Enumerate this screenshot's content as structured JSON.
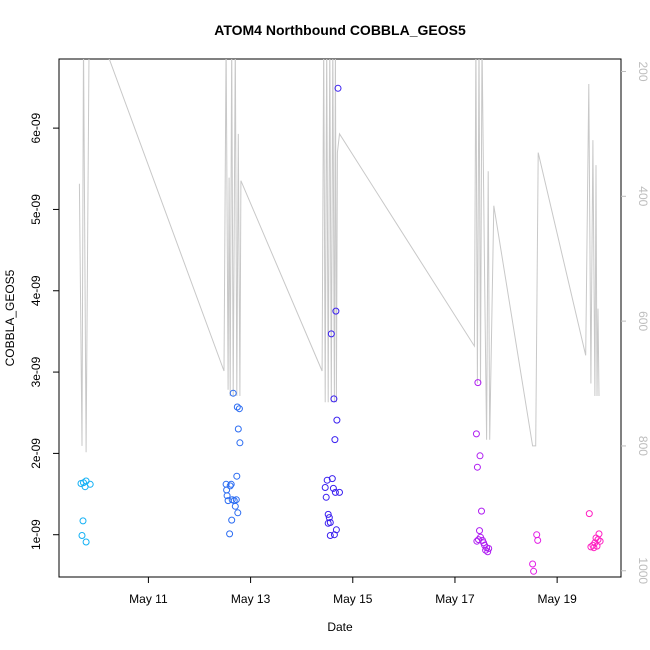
{
  "chart_data": {
    "type": "scatter",
    "title": "ATOM4 Northbound COBBLA_GEOS5",
    "xlabel": "Date",
    "ylabel": "COBBLA_GEOS5",
    "x_unit": "day of May",
    "xlim": [
      9.25,
      20.25
    ],
    "ylim": [
      4.8e-10,
      6.85e-09
    ],
    "x_ticks": [
      {
        "value": 11,
        "label": "May 11"
      },
      {
        "value": 13,
        "label": "May 13"
      },
      {
        "value": 15,
        "label": "May 15"
      },
      {
        "value": 17,
        "label": "May 17"
      },
      {
        "value": 19,
        "label": "May 19"
      }
    ],
    "y_ticks": [
      {
        "value": 1e-09,
        "label": "1e-09"
      },
      {
        "value": 2e-09,
        "label": "2e-09"
      },
      {
        "value": 3e-09,
        "label": "3e-09"
      },
      {
        "value": 4e-09,
        "label": "4e-09"
      },
      {
        "value": 5e-09,
        "label": "5e-09"
      },
      {
        "value": 6e-09,
        "label": "6e-09"
      }
    ],
    "secondary_axis": {
      "side": "right",
      "reversed": true,
      "ylim": [
        180,
        1010
      ],
      "ticks": [
        {
          "value": 200,
          "label": "200"
        },
        {
          "value": 400,
          "label": "400"
        },
        {
          "value": 600,
          "label": "600"
        },
        {
          "value": 800,
          "label": "800"
        },
        {
          "value": 1000,
          "label": "1000"
        }
      ],
      "color": "#bdbdbd"
    },
    "grid": false,
    "colors": {
      "line": "#c8c8c8",
      "points_early": "#00bfff",
      "points_mid": "#1f3fff",
      "points_late": "#ff00ff",
      "axis": "#000000"
    },
    "scatter_points": [
      {
        "x": 9.68,
        "y": 1.63e-09,
        "color": "#11b0f5"
      },
      {
        "x": 9.73,
        "y": 1.64e-09,
        "color": "#11b0f5"
      },
      {
        "x": 9.76,
        "y": 1.59e-09,
        "color": "#11b0f5"
      },
      {
        "x": 9.78,
        "y": 1.66e-09,
        "color": "#11b0f5"
      },
      {
        "x": 9.86,
        "y": 1.62e-09,
        "color": "#11b0f5"
      },
      {
        "x": 9.72,
        "y": 1.17e-09,
        "color": "#11b0f5"
      },
      {
        "x": 9.7,
        "y": 9.9e-10,
        "color": "#11b0f5"
      },
      {
        "x": 9.78,
        "y": 9.1e-10,
        "color": "#11b0f5"
      },
      {
        "x": 12.52,
        "y": 1.62e-09,
        "color": "#2b6cf2"
      },
      {
        "x": 12.53,
        "y": 1.55e-09,
        "color": "#2b6cf2"
      },
      {
        "x": 12.54,
        "y": 1.48e-09,
        "color": "#2b6cf2"
      },
      {
        "x": 12.56,
        "y": 1.42e-09,
        "color": "#2b6cf2"
      },
      {
        "x": 12.6,
        "y": 1.6e-09,
        "color": "#2b6cf2"
      },
      {
        "x": 12.62,
        "y": 1.62e-09,
        "color": "#2b6cf2"
      },
      {
        "x": 12.64,
        "y": 1.43e-09,
        "color": "#2b6cf2"
      },
      {
        "x": 12.66,
        "y": 2.74e-09,
        "color": "#2b6cf2"
      },
      {
        "x": 12.68,
        "y": 1.42e-09,
        "color": "#2b6cf2"
      },
      {
        "x": 12.7,
        "y": 1.35e-09,
        "color": "#2b6cf2"
      },
      {
        "x": 12.72,
        "y": 1.43e-09,
        "color": "#2b6cf2"
      },
      {
        "x": 12.73,
        "y": 1.72e-09,
        "color": "#2b6cf2"
      },
      {
        "x": 12.74,
        "y": 2.57e-09,
        "color": "#2b6cf2"
      },
      {
        "x": 12.76,
        "y": 2.3e-09,
        "color": "#2b6cf2"
      },
      {
        "x": 12.78,
        "y": 2.55e-09,
        "color": "#2b6cf2"
      },
      {
        "x": 12.79,
        "y": 2.13e-09,
        "color": "#2b6cf2"
      },
      {
        "x": 12.75,
        "y": 1.27e-09,
        "color": "#2b6cf2"
      },
      {
        "x": 12.63,
        "y": 1.18e-09,
        "color": "#2b6cf2"
      },
      {
        "x": 12.59,
        "y": 1.01e-09,
        "color": "#2b6cf2"
      },
      {
        "x": 14.46,
        "y": 1.58e-09,
        "color": "#3a1ff0"
      },
      {
        "x": 14.48,
        "y": 1.46e-09,
        "color": "#3a1ff0"
      },
      {
        "x": 14.5,
        "y": 1.67e-09,
        "color": "#3a1ff0"
      },
      {
        "x": 14.52,
        "y": 1.25e-09,
        "color": "#3a1ff0"
      },
      {
        "x": 14.54,
        "y": 1.21e-09,
        "color": "#3a1ff0"
      },
      {
        "x": 14.56,
        "y": 1.15e-09,
        "color": "#3a1ff0"
      },
      {
        "x": 14.58,
        "y": 3.47e-09,
        "color": "#3a1ff0"
      },
      {
        "x": 14.6,
        "y": 1.69e-09,
        "color": "#3a1ff0"
      },
      {
        "x": 14.62,
        "y": 1.57e-09,
        "color": "#3a1ff0"
      },
      {
        "x": 14.63,
        "y": 2.67e-09,
        "color": "#3a1ff0"
      },
      {
        "x": 14.64,
        "y": 1e-09,
        "color": "#3a1ff0"
      },
      {
        "x": 14.65,
        "y": 2.17e-09,
        "color": "#3a1ff0"
      },
      {
        "x": 14.66,
        "y": 1.52e-09,
        "color": "#3a1ff0"
      },
      {
        "x": 14.67,
        "y": 3.75e-09,
        "color": "#3a1ff0"
      },
      {
        "x": 14.68,
        "y": 1.06e-09,
        "color": "#3a1ff0"
      },
      {
        "x": 14.69,
        "y": 2.41e-09,
        "color": "#3a1ff0"
      },
      {
        "x": 14.71,
        "y": 6.49e-09,
        "color": "#3a1ff0"
      },
      {
        "x": 14.74,
        "y": 1.52e-09,
        "color": "#3a1ff0"
      },
      {
        "x": 14.52,
        "y": 1.14e-09,
        "color": "#3a1ff0"
      },
      {
        "x": 14.56,
        "y": 9.9e-10,
        "color": "#3a1ff0"
      },
      {
        "x": 17.42,
        "y": 2.24e-09,
        "color": "#b01ff2"
      },
      {
        "x": 17.44,
        "y": 1.83e-09,
        "color": "#b01ff2"
      },
      {
        "x": 17.45,
        "y": 2.87e-09,
        "color": "#b01ff2"
      },
      {
        "x": 17.46,
        "y": 9.4e-10,
        "color": "#b01ff2"
      },
      {
        "x": 17.48,
        "y": 1.05e-09,
        "color": "#b01ff2"
      },
      {
        "x": 17.49,
        "y": 1.97e-09,
        "color": "#b01ff2"
      },
      {
        "x": 17.5,
        "y": 9.7e-10,
        "color": "#b01ff2"
      },
      {
        "x": 17.52,
        "y": 1.29e-09,
        "color": "#b01ff2"
      },
      {
        "x": 17.54,
        "y": 9.3e-10,
        "color": "#b01ff2"
      },
      {
        "x": 17.56,
        "y": 9e-10,
        "color": "#b01ff2"
      },
      {
        "x": 17.58,
        "y": 8.7e-10,
        "color": "#b01ff2"
      },
      {
        "x": 17.6,
        "y": 8.1e-10,
        "color": "#b01ff2"
      },
      {
        "x": 17.62,
        "y": 8.4e-10,
        "color": "#b01ff2"
      },
      {
        "x": 17.64,
        "y": 7.9e-10,
        "color": "#b01ff2"
      },
      {
        "x": 17.66,
        "y": 8.3e-10,
        "color": "#b01ff2"
      },
      {
        "x": 17.43,
        "y": 9.2e-10,
        "color": "#b01ff2"
      },
      {
        "x": 18.52,
        "y": 6.4e-10,
        "color": "#e31ee6"
      },
      {
        "x": 18.54,
        "y": 5.5e-10,
        "color": "#e31ee6"
      },
      {
        "x": 18.6,
        "y": 1e-09,
        "color": "#e31ee6"
      },
      {
        "x": 18.62,
        "y": 9.3e-10,
        "color": "#e31ee6"
      },
      {
        "x": 19.63,
        "y": 1.26e-09,
        "color": "#ff1fc2"
      },
      {
        "x": 19.66,
        "y": 8.5e-10,
        "color": "#ff1fc2"
      },
      {
        "x": 19.7,
        "y": 8.7e-10,
        "color": "#ff1fc2"
      },
      {
        "x": 19.72,
        "y": 8.4e-10,
        "color": "#ff1fc2"
      },
      {
        "x": 19.74,
        "y": 9e-10,
        "color": "#ff1fc2"
      },
      {
        "x": 19.76,
        "y": 9.6e-10,
        "color": "#ff1fc2"
      },
      {
        "x": 19.78,
        "y": 8.6e-10,
        "color": "#ff1fc2"
      },
      {
        "x": 19.8,
        "y": 9.4e-10,
        "color": "#ff1fc2"
      },
      {
        "x": 19.82,
        "y": 1.01e-09,
        "color": "#ff1fc2"
      },
      {
        "x": 19.84,
        "y": 9.2e-10,
        "color": "#ff1fc2"
      }
    ],
    "pressure_line": [
      [
        9.65,
        380
      ],
      [
        9.7,
        800
      ],
      [
        9.73,
        150
      ],
      [
        9.78,
        810
      ],
      [
        9.84,
        150
      ],
      [
        9.95,
        150
      ],
      [
        10.1,
        150
      ],
      [
        12.48,
        680
      ],
      [
        12.52,
        150
      ],
      [
        12.56,
        710
      ],
      [
        12.58,
        370
      ],
      [
        12.6,
        720
      ],
      [
        12.63,
        150
      ],
      [
        12.66,
        720
      ],
      [
        12.7,
        150
      ],
      [
        12.73,
        720
      ],
      [
        12.76,
        300
      ],
      [
        12.79,
        720
      ],
      [
        12.81,
        375
      ],
      [
        14.4,
        680
      ],
      [
        14.43,
        150
      ],
      [
        14.46,
        730
      ],
      [
        14.49,
        150
      ],
      [
        14.52,
        730
      ],
      [
        14.55,
        150
      ],
      [
        14.58,
        730
      ],
      [
        14.61,
        150
      ],
      [
        14.64,
        730
      ],
      [
        14.66,
        150
      ],
      [
        14.68,
        730
      ],
      [
        14.7,
        330
      ],
      [
        14.74,
        300
      ],
      [
        17.38,
        640
      ],
      [
        17.41,
        150
      ],
      [
        17.44,
        700
      ],
      [
        17.47,
        150
      ],
      [
        17.5,
        700
      ],
      [
        17.53,
        150
      ],
      [
        17.58,
        530
      ],
      [
        17.62,
        790
      ],
      [
        17.65,
        360
      ],
      [
        17.68,
        790
      ],
      [
        17.76,
        415
      ],
      [
        18.52,
        800
      ],
      [
        18.58,
        800
      ],
      [
        18.63,
        330
      ],
      [
        19.56,
        655
      ],
      [
        19.62,
        220
      ],
      [
        19.66,
        700
      ],
      [
        19.7,
        310
      ],
      [
        19.74,
        720
      ],
      [
        19.76,
        350
      ],
      [
        19.78,
        720
      ],
      [
        19.8,
        580
      ],
      [
        19.82,
        720
      ]
    ]
  }
}
